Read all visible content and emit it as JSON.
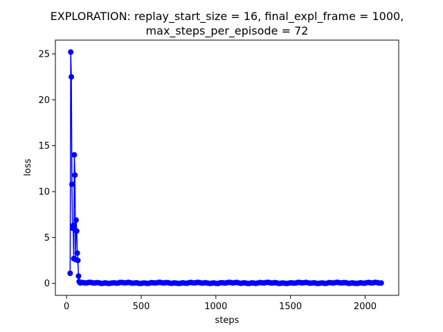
{
  "chart_data": {
    "type": "line",
    "title_line1": "EXPLORATION: replay_start_size = 16, final_expl_frame = 1000,",
    "title_line2": "max_steps_per_episode = 72",
    "xlabel": "steps",
    "ylabel": "loss",
    "xlim": [
      -75,
      2225
    ],
    "ylim": [
      -1.3,
      26.5
    ],
    "x_ticks": [
      0,
      500,
      1000,
      1500,
      2000
    ],
    "y_ticks": [
      0,
      5,
      10,
      15,
      20,
      25
    ],
    "grid": false,
    "legend": "none",
    "series": [
      {
        "color": "#0000ff",
        "marker": "circle",
        "x": [
          24,
          28,
          32,
          36,
          40,
          44,
          48,
          52,
          56,
          60,
          64,
          68,
          72,
          76,
          80,
          84,
          88
        ],
        "y": [
          1.1,
          25.2,
          22.5,
          10.8,
          6.0,
          6.3,
          2.7,
          14.0,
          11.8,
          2.6,
          6.9,
          5.7,
          3.3,
          2.5,
          0.8,
          0.2,
          0.1
        ]
      }
    ],
    "tail_series": {
      "x_start": 92,
      "x_end": 2120,
      "x_step": 14,
      "base_value": 0.05,
      "jitter": 0.07
    }
  }
}
